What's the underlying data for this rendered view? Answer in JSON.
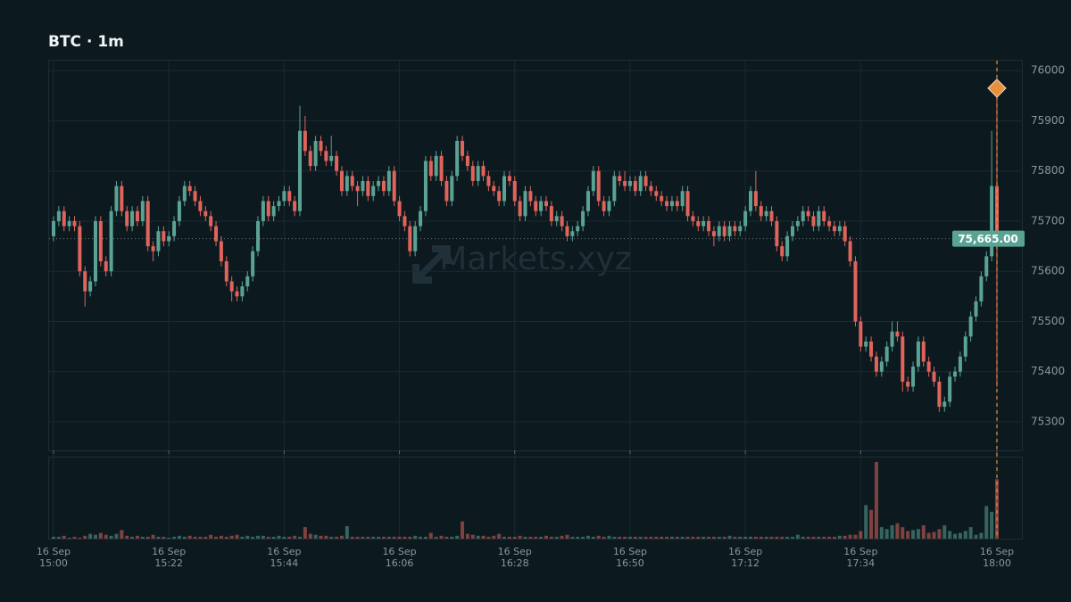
{
  "chart_data": {
    "type": "candlestick",
    "title": "BTC · 1m",
    "watermark": "Markets.xyz",
    "up_color": "#5aa394",
    "down_color": "#e0645c",
    "grid": true,
    "xlim": [
      0,
      180
    ],
    "xticks": [
      {
        "value": 0,
        "label": [
          "16 Sep",
          "15:00"
        ]
      },
      {
        "value": 22,
        "label": [
          "16 Sep",
          "15:22"
        ]
      },
      {
        "value": 44,
        "label": [
          "16 Sep",
          "15:44"
        ]
      },
      {
        "value": 66,
        "label": [
          "16 Sep",
          "16:06"
        ]
      },
      {
        "value": 88,
        "label": [
          "16 Sep",
          "16:28"
        ]
      },
      {
        "value": 110,
        "label": [
          "16 Sep",
          "16:50"
        ]
      },
      {
        "value": 132,
        "label": [
          "16 Sep",
          "17:12"
        ]
      },
      {
        "value": 154,
        "label": [
          "16 Sep",
          "17:34"
        ]
      },
      {
        "value": 180,
        "label": [
          "16 Sep",
          "18:00"
        ]
      }
    ],
    "ylim": [
      75243,
      76020
    ],
    "yticks": [
      75300,
      75400,
      75500,
      75600,
      75700,
      75800,
      75900,
      76000
    ],
    "last_price": {
      "value": 75665,
      "label": "75,665.00"
    },
    "marker": {
      "value": 75965,
      "color": "#e8913a"
    },
    "open": [
      75670,
      75700,
      75720,
      75690,
      75700,
      75690,
      75600,
      75560,
      75580,
      75700,
      75620,
      75600,
      75720,
      75770,
      75720,
      75690,
      75720,
      75700,
      75740,
      75650,
      75640,
      75680,
      75660,
      75670,
      75700,
      75740,
      75770,
      75760,
      75740,
      75720,
      75710,
      75690,
      75660,
      75620,
      75580,
      75560,
      75550,
      75570,
      75590,
      75640,
      75700,
      75740,
      75710,
      75730,
      75740,
      75760,
      75740,
      75720,
      75880,
      75840,
      75810,
      75860,
      75840,
      75820,
      75830,
      75800,
      75760,
      75790,
      75770,
      75760,
      75780,
      75750,
      75770,
      75780,
      75760,
      75800,
      75740,
      75710,
      75690,
      75640,
      75690,
      75720,
      75820,
      75790,
      75830,
      75780,
      75740,
      75790,
      75860,
      75830,
      75810,
      75780,
      75810,
      75790,
      75770,
      75760,
      75740,
      75790,
      75780,
      75740,
      75710,
      75760,
      75740,
      75720,
      75740,
      75730,
      75700,
      75710,
      75690,
      75670,
      75680,
      75690,
      75720,
      75760,
      75800,
      75740,
      75720,
      75740,
      75790,
      75780,
      75770,
      75780,
      75760,
      75790,
      75770,
      75760,
      75750,
      75740,
      75730,
      75740,
      75730,
      75760,
      75710,
      75700,
      75690,
      75700,
      75680,
      75670,
      75690,
      75670,
      75690,
      75680,
      75690,
      75720,
      75760,
      75730,
      75710,
      75720,
      75700,
      75650,
      75630,
      75670,
      75690,
      75700,
      75720,
      75710,
      75690,
      75720,
      75700,
      75690,
      75680,
      75690,
      75660,
      75620,
      75500,
      75450,
      75460,
      75430,
      75400,
      75420,
      75450,
      75480,
      75470,
      75380,
      75370,
      75410,
      75460,
      75420,
      75400,
      75380,
      75330,
      75340,
      75390,
      75400,
      75430,
      75470,
      75510,
      75540,
      75590,
      75630,
      75770
    ],
    "high": [
      75710,
      75730,
      75730,
      75710,
      75710,
      75700,
      75610,
      75590,
      75710,
      75710,
      75630,
      75730,
      75780,
      75780,
      75730,
      75730,
      75730,
      75750,
      75750,
      75660,
      75690,
      75690,
      75680,
      75710,
      75750,
      75780,
      75780,
      75770,
      75750,
      75730,
      75720,
      75700,
      75670,
      75630,
      75590,
      75570,
      75580,
      75600,
      75650,
      75710,
      75750,
      75750,
      75740,
      75750,
      75770,
      75770,
      75750,
      75930,
      75910,
      75850,
      75870,
      75870,
      75850,
      75870,
      75840,
      75810,
      75800,
      75800,
      75780,
      75790,
      75790,
      75780,
      75790,
      75790,
      75810,
      75810,
      75750,
      75720,
      75700,
      75700,
      75730,
      75830,
      75830,
      75840,
      75840,
      75790,
      75800,
      75870,
      75870,
      75840,
      75820,
      75820,
      75820,
      75800,
      75780,
      75770,
      75800,
      75800,
      75790,
      75750,
      75770,
      75770,
      75750,
      75750,
      75750,
      75740,
      75720,
      75720,
      75700,
      75690,
      75700,
      75730,
      75770,
      75810,
      75810,
      75750,
      75750,
      75800,
      75800,
      75800,
      75790,
      75790,
      75800,
      75800,
      75780,
      75770,
      75760,
      75750,
      75750,
      75750,
      75770,
      75770,
      75720,
      75710,
      75710,
      75710,
      75690,
      75700,
      75700,
      75700,
      75700,
      75700,
      75730,
      75770,
      75800,
      75740,
      75730,
      75730,
      75710,
      75660,
      75680,
      75700,
      75710,
      75730,
      75730,
      75720,
      75730,
      75730,
      75710,
      75700,
      75700,
      75700,
      75670,
      75630,
      75510,
      75470,
      75470,
      75440,
      75430,
      75460,
      75500,
      75500,
      75480,
      75390,
      75420,
      75470,
      75470,
      75430,
      75410,
      75390,
      75350,
      75400,
      75410,
      75440,
      75480,
      75520,
      75550,
      75600,
      75640,
      75880,
      75960
    ],
    "low": [
      75660,
      75690,
      75680,
      75680,
      75680,
      75590,
      75530,
      75550,
      75570,
      75610,
      75590,
      75590,
      75710,
      75710,
      75680,
      75680,
      75690,
      75690,
      75640,
      75620,
      75630,
      75650,
      75650,
      75660,
      75690,
      75730,
      75750,
      75730,
      75710,
      75700,
      75680,
      75650,
      75610,
      75570,
      75540,
      75540,
      75540,
      75560,
      75580,
      75630,
      75690,
      75700,
      75700,
      75720,
      75730,
      75730,
      75710,
      75710,
      75830,
      75800,
      75800,
      75830,
      75810,
      75810,
      75790,
      75750,
      75750,
      75760,
      75730,
      75750,
      75740,
      75740,
      75760,
      75750,
      75750,
      75730,
      75700,
      75680,
      75630,
      75630,
      75680,
      75710,
      75780,
      75780,
      75770,
      75730,
      75730,
      75780,
      75820,
      75800,
      75770,
      75770,
      75780,
      75760,
      75750,
      75730,
      75730,
      75770,
      75730,
      75700,
      75700,
      75730,
      75710,
      75710,
      75720,
      75690,
      75690,
      75680,
      75660,
      75660,
      75670,
      75680,
      75710,
      75750,
      75730,
      75710,
      75710,
      75730,
      75770,
      75760,
      75760,
      75750,
      75750,
      75760,
      75750,
      75740,
      75730,
      75720,
      75720,
      75720,
      75720,
      75700,
      75690,
      75680,
      75680,
      75670,
      75650,
      75660,
      75660,
      75660,
      75670,
      75670,
      75680,
      75710,
      75720,
      75700,
      75700,
      75690,
      75640,
      75620,
      75620,
      75660,
      75680,
      75690,
      75700,
      75680,
      75680,
      75690,
      75680,
      75670,
      75670,
      75650,
      75610,
      75490,
      75440,
      75440,
      75420,
      75390,
      75390,
      75410,
      75440,
      75460,
      75360,
      75360,
      75360,
      75400,
      75410,
      75390,
      75370,
      75320,
      75320,
      75330,
      75380,
      75390,
      75420,
      75460,
      75500,
      75530,
      75580,
      75620,
      75370
    ],
    "close": [
      75700,
      75720,
      75690,
      75700,
      75690,
      75600,
      75560,
      75580,
      75700,
      75620,
      75600,
      75720,
      75770,
      75720,
      75690,
      75720,
      75700,
      75740,
      75650,
      75640,
      75680,
      75660,
      75670,
      75700,
      75740,
      75770,
      75760,
      75740,
      75720,
      75710,
      75690,
      75660,
      75620,
      75580,
      75560,
      75550,
      75570,
      75590,
      75640,
      75700,
      75740,
      75710,
      75730,
      75740,
      75760,
      75740,
      75720,
      75880,
      75840,
      75810,
      75860,
      75840,
      75820,
      75830,
      75800,
      75760,
      75790,
      75770,
      75760,
      75780,
      75750,
      75770,
      75780,
      75760,
      75800,
      75740,
      75710,
      75690,
      75640,
      75690,
      75720,
      75820,
      75790,
      75830,
      75780,
      75740,
      75790,
      75860,
      75830,
      75810,
      75780,
      75810,
      75790,
      75770,
      75760,
      75740,
      75790,
      75780,
      75740,
      75710,
      75760,
      75740,
      75720,
      75740,
      75730,
      75700,
      75710,
      75690,
      75670,
      75680,
      75690,
      75720,
      75760,
      75800,
      75740,
      75720,
      75740,
      75790,
      75780,
      75770,
      75780,
      75760,
      75790,
      75770,
      75760,
      75750,
      75740,
      75730,
      75740,
      75730,
      75760,
      75710,
      75700,
      75690,
      75700,
      75680,
      75670,
      75690,
      75670,
      75690,
      75680,
      75690,
      75720,
      75760,
      75730,
      75710,
      75720,
      75700,
      75650,
      75630,
      75670,
      75690,
      75700,
      75720,
      75710,
      75690,
      75720,
      75700,
      75690,
      75680,
      75690,
      75660,
      75620,
      75500,
      75450,
      75460,
      75430,
      75400,
      75420,
      75450,
      75480,
      75470,
      75380,
      75370,
      75410,
      75460,
      75420,
      75400,
      75380,
      75330,
      75340,
      75390,
      75400,
      75430,
      75470,
      75510,
      75540,
      75590,
      75630,
      75770,
      75665
    ],
    "volume": [
      2,
      2,
      3,
      1,
      2,
      1,
      3,
      5,
      4,
      6,
      4,
      3,
      5,
      9,
      3,
      2,
      3,
      2,
      2,
      4,
      2,
      2,
      1,
      2,
      3,
      2,
      3,
      2,
      2,
      2,
      4,
      2,
      3,
      2,
      3,
      4,
      2,
      3,
      2,
      3,
      3,
      2,
      2,
      3,
      2,
      2,
      3,
      2,
      12,
      5,
      4,
      3,
      3,
      2,
      2,
      3,
      13,
      2,
      2,
      2,
      2,
      2,
      2,
      2,
      2,
      2,
      2,
      2,
      2,
      3,
      2,
      2,
      6,
      2,
      3,
      2,
      2,
      3,
      18,
      5,
      4,
      3,
      3,
      2,
      3,
      5,
      2,
      2,
      2,
      3,
      2,
      2,
      2,
      2,
      3,
      2,
      2,
      3,
      4,
      2,
      2,
      2,
      3,
      2,
      3,
      2,
      3,
      2,
      2,
      2,
      2,
      2,
      2,
      2,
      2,
      2,
      2,
      2,
      2,
      2,
      2,
      2,
      2,
      2,
      2,
      2,
      2,
      2,
      2,
      3,
      2,
      2,
      2,
      2,
      2,
      2,
      2,
      2,
      2,
      2,
      2,
      2,
      4,
      2,
      2,
      2,
      2,
      2,
      2,
      2,
      3,
      3,
      4,
      4,
      8,
      35,
      30,
      80,
      12,
      10,
      14,
      16,
      12,
      8,
      9,
      10,
      14,
      6,
      7,
      10,
      14,
      8,
      5,
      6,
      8,
      12,
      4,
      6,
      34,
      28,
      62
    ]
  }
}
